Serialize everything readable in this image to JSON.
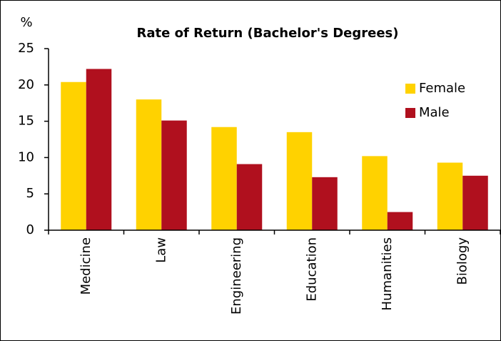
{
  "chart_data": {
    "type": "bar",
    "title": "Rate of Return (Bachelor's Degrees)",
    "y_label": "%",
    "categories": [
      "Medicine",
      "Law",
      "Engineering",
      "Education",
      "Humanities",
      "Biology"
    ],
    "series": [
      {
        "name": "Female",
        "color": "#ffd200",
        "values": [
          20.4,
          18.0,
          14.2,
          13.5,
          10.2,
          9.3
        ]
      },
      {
        "name": "Male",
        "color": "#b0101e",
        "values": [
          22.2,
          15.1,
          9.1,
          7.3,
          2.5,
          7.5
        ]
      }
    ],
    "ylim": [
      0,
      25
    ],
    "yticks": [
      0,
      5,
      10,
      15,
      20,
      25
    ],
    "grid": false,
    "legend": "right"
  }
}
